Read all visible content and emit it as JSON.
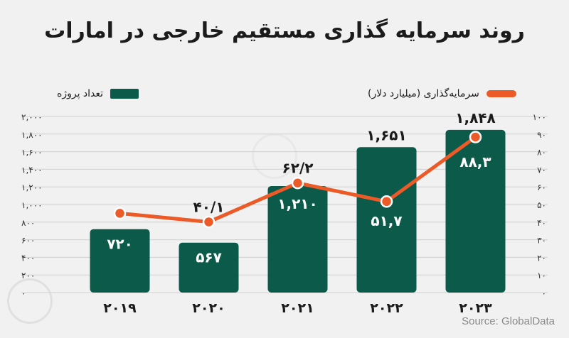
{
  "title": "روند سرمایه گذاری مستقیم خارجی در امارات",
  "legend": {
    "bar_label": "تعداد پروژه",
    "line_label": "سرمایه‌گذاری (میلیارد دلار)"
  },
  "source": "Source: GlobalData",
  "colors": {
    "bar": "#0b5a4a",
    "line": "#ec5a27",
    "marker_fill": "#ec5a27",
    "marker_stroke": "#ffffff",
    "grid": "#cfcfcf",
    "text": "#222222"
  },
  "chart_data": {
    "type": "bar",
    "categories": [
      "۲۰۱۹",
      "۲۰۲۰",
      "۲۰۲۱",
      "۲۰۲۲",
      "۲۰۲۳"
    ],
    "series": [
      {
        "name": "تعداد پروژه",
        "type": "bar",
        "axis": "left",
        "values": [
          720,
          567,
          1210,
          1651,
          1848
        ],
        "labels": [
          "۷۲۰",
          "۵۶۷",
          "۱,۲۱۰",
          "۱,۶۵۱",
          "۱,۸۴۸"
        ]
      },
      {
        "name": "سرمایه‌گذاری (میلیارد دلار)",
        "type": "line",
        "axis": "right",
        "values": [
          45,
          40.1,
          62.2,
          51.7,
          88.3
        ],
        "labels": [
          "",
          "۴۰/۱",
          "۶۲/۲",
          "۵۱,۷",
          "۸۸,۳"
        ]
      }
    ],
    "y_left": {
      "min": 0,
      "max": 2000,
      "ticks": [
        0,
        200,
        400,
        600,
        800,
        1000,
        1200,
        1400,
        1600,
        1800,
        2000
      ],
      "tick_labels": [
        "۰",
        "۲۰۰",
        "۴۰۰",
        "۶۰۰",
        "۸۰۰",
        "۱,۰۰۰",
        "۱,۲۰۰",
        "۱,۴۰۰",
        "۱,۶۰۰",
        "۱,۸۰۰",
        "۲,۰۰۰"
      ]
    },
    "y_right": {
      "min": 0,
      "max": 100,
      "ticks": [
        0,
        10,
        20,
        30,
        40,
        50,
        60,
        70,
        80,
        90,
        100
      ],
      "tick_labels": [
        "۰",
        "۱۰",
        "۲۰",
        "۳۰",
        "۴۰",
        "۵۰",
        "۶۰",
        "۷۰",
        "۸۰",
        "۹۰",
        "۱۰۰"
      ]
    },
    "grid": true,
    "legend_position": "top"
  }
}
